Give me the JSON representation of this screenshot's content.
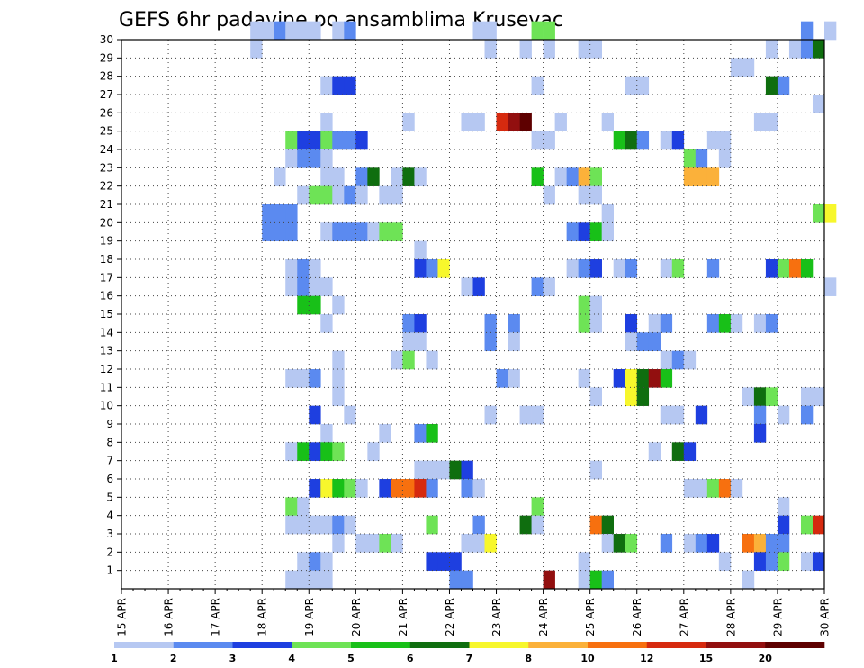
{
  "chart_data": {
    "type": "heatmap",
    "title": "GEFS 6hr padavine po ansamblima Krusevac",
    "xlabel": "",
    "ylabel": "",
    "x_tick_labels": [
      "15 APR",
      "16 APR",
      "17 APR",
      "18 APR",
      "19 APR",
      "20 APR",
      "21 APR",
      "22 APR",
      "23 APR",
      "24 APR",
      "25 APR",
      "26 APR",
      "27 APR",
      "28 APR",
      "29 APR",
      "30 APR"
    ],
    "y_tick_labels": [
      "1",
      "2",
      "3",
      "4",
      "5",
      "6",
      "7",
      "8",
      "9",
      "10",
      "11",
      "12",
      "13",
      "14",
      "15",
      "16",
      "17",
      "18",
      "19",
      "20",
      "21",
      "22",
      "23",
      "24",
      "25",
      "26",
      "27",
      "28",
      "29",
      "30"
    ],
    "legend": {
      "colors": [
        "#b6c8f2",
        "#5b8af0",
        "#1e3fe0",
        "#6ee356",
        "#18c018",
        "#0f6e0f",
        "#f7f72c",
        "#fbb13a",
        "#f7700f",
        "#d62a0f",
        "#920f0f",
        "#5e0000"
      ],
      "labels": [
        "1",
        "2",
        "3",
        "4",
        "5",
        "6",
        "7",
        "8",
        "10",
        "12",
        "15",
        "20"
      ]
    },
    "time_steps_6h_from_15APR00": "x index 0..60, 4 steps per day",
    "cells": [
      [
        11,
        30,
        0
      ],
      [
        12,
        30,
        0
      ],
      [
        13,
        30,
        1
      ],
      [
        14,
        30,
        0
      ],
      [
        15,
        30,
        0
      ],
      [
        16,
        30,
        0
      ],
      [
        18,
        30,
        0
      ],
      [
        19,
        30,
        1
      ],
      [
        30,
        30,
        0
      ],
      [
        31,
        30,
        0
      ],
      [
        35,
        30,
        3
      ],
      [
        36,
        30,
        3
      ],
      [
        58,
        30,
        1
      ],
      [
        60,
        30,
        0
      ],
      [
        11,
        29,
        0
      ],
      [
        31,
        29,
        0
      ],
      [
        34,
        29,
        0
      ],
      [
        36,
        29,
        0
      ],
      [
        39,
        29,
        0
      ],
      [
        40,
        29,
        0
      ],
      [
        55,
        29,
        0
      ],
      [
        57,
        29,
        0
      ],
      [
        58,
        29,
        1
      ],
      [
        59,
        29,
        5
      ],
      [
        52,
        28,
        0
      ],
      [
        53,
        28,
        0
      ],
      [
        17,
        27,
        0
      ],
      [
        18,
        27,
        2
      ],
      [
        19,
        27,
        2
      ],
      [
        35,
        27,
        0
      ],
      [
        43,
        27,
        0
      ],
      [
        44,
        27,
        0
      ],
      [
        55,
        27,
        5
      ],
      [
        56,
        27,
        1
      ],
      [
        59,
        26,
        0
      ],
      [
        17,
        25,
        0
      ],
      [
        24,
        25,
        0
      ],
      [
        29,
        25,
        0
      ],
      [
        30,
        25,
        0
      ],
      [
        32,
        25,
        9
      ],
      [
        33,
        25,
        10
      ],
      [
        34,
        25,
        11
      ],
      [
        37,
        25,
        0
      ],
      [
        41,
        25,
        0
      ],
      [
        54,
        25,
        0
      ],
      [
        55,
        25,
        0
      ],
      [
        14,
        24,
        3
      ],
      [
        15,
        24,
        2
      ],
      [
        16,
        24,
        2
      ],
      [
        17,
        24,
        3
      ],
      [
        18,
        24,
        1
      ],
      [
        19,
        24,
        1
      ],
      [
        20,
        24,
        2
      ],
      [
        35,
        24,
        0
      ],
      [
        36,
        24,
        0
      ],
      [
        42,
        24,
        4
      ],
      [
        43,
        24,
        5
      ],
      [
        44,
        24,
        1
      ],
      [
        46,
        24,
        0
      ],
      [
        47,
        24,
        2
      ],
      [
        50,
        24,
        0
      ],
      [
        51,
        24,
        0
      ],
      [
        14,
        23,
        0
      ],
      [
        15,
        23,
        1
      ],
      [
        16,
        23,
        1
      ],
      [
        17,
        23,
        0
      ],
      [
        48,
        23,
        3
      ],
      [
        49,
        23,
        1
      ],
      [
        51,
        23,
        0
      ],
      [
        13,
        22,
        0
      ],
      [
        17,
        22,
        0
      ],
      [
        18,
        22,
        0
      ],
      [
        20,
        22,
        1
      ],
      [
        21,
        22,
        5
      ],
      [
        23,
        22,
        0
      ],
      [
        24,
        22,
        5
      ],
      [
        25,
        22,
        0
      ],
      [
        35,
        22,
        4
      ],
      [
        37,
        22,
        0
      ],
      [
        38,
        22,
        1
      ],
      [
        39,
        22,
        7
      ],
      [
        40,
        22,
        3
      ],
      [
        48,
        22,
        7
      ],
      [
        49,
        22,
        7
      ],
      [
        50,
        22,
        7
      ],
      [
        15,
        21,
        0
      ],
      [
        16,
        21,
        3
      ],
      [
        17,
        21,
        3
      ],
      [
        18,
        21,
        0
      ],
      [
        19,
        21,
        1
      ],
      [
        20,
        21,
        0
      ],
      [
        22,
        21,
        0
      ],
      [
        23,
        21,
        0
      ],
      [
        36,
        21,
        0
      ],
      [
        39,
        21,
        0
      ],
      [
        40,
        21,
        0
      ],
      [
        12,
        20,
        1
      ],
      [
        13,
        20,
        1
      ],
      [
        14,
        20,
        1
      ],
      [
        41,
        20,
        0
      ],
      [
        59,
        20,
        3
      ],
      [
        60,
        20,
        6
      ],
      [
        12,
        19,
        1
      ],
      [
        13,
        19,
        1
      ],
      [
        14,
        19,
        1
      ],
      [
        17,
        19,
        0
      ],
      [
        18,
        19,
        1
      ],
      [
        19,
        19,
        1
      ],
      [
        20,
        19,
        1
      ],
      [
        21,
        19,
        0
      ],
      [
        22,
        19,
        3
      ],
      [
        23,
        19,
        3
      ],
      [
        38,
        19,
        1
      ],
      [
        39,
        19,
        2
      ],
      [
        40,
        19,
        4
      ],
      [
        41,
        19,
        0
      ],
      [
        25,
        18,
        0
      ],
      [
        14,
        17,
        0
      ],
      [
        15,
        17,
        1
      ],
      [
        16,
        17,
        0
      ],
      [
        25,
        17,
        2
      ],
      [
        26,
        17,
        1
      ],
      [
        27,
        17,
        6
      ],
      [
        38,
        17,
        0
      ],
      [
        39,
        17,
        1
      ],
      [
        40,
        17,
        2
      ],
      [
        42,
        17,
        0
      ],
      [
        43,
        17,
        1
      ],
      [
        46,
        17,
        0
      ],
      [
        47,
        17,
        3
      ],
      [
        50,
        17,
        1
      ],
      [
        55,
        17,
        2
      ],
      [
        56,
        17,
        3
      ],
      [
        57,
        17,
        8
      ],
      [
        58,
        17,
        4
      ],
      [
        14,
        16,
        0
      ],
      [
        15,
        16,
        1
      ],
      [
        16,
        16,
        0
      ],
      [
        17,
        16,
        0
      ],
      [
        29,
        16,
        0
      ],
      [
        30,
        16,
        2
      ],
      [
        35,
        16,
        1
      ],
      [
        36,
        16,
        0
      ],
      [
        60,
        16,
        0
      ],
      [
        15,
        15,
        4
      ],
      [
        16,
        15,
        4
      ],
      [
        18,
        15,
        0
      ],
      [
        39,
        15,
        3
      ],
      [
        40,
        15,
        0
      ],
      [
        17,
        14,
        0
      ],
      [
        24,
        14,
        1
      ],
      [
        25,
        14,
        2
      ],
      [
        31,
        14,
        1
      ],
      [
        33,
        14,
        1
      ],
      [
        39,
        14,
        3
      ],
      [
        40,
        14,
        0
      ],
      [
        43,
        14,
        2
      ],
      [
        45,
        14,
        0
      ],
      [
        46,
        14,
        1
      ],
      [
        50,
        14,
        1
      ],
      [
        51,
        14,
        4
      ],
      [
        52,
        14,
        0
      ],
      [
        54,
        14,
        0
      ],
      [
        55,
        14,
        1
      ],
      [
        24,
        13,
        0
      ],
      [
        25,
        13,
        0
      ],
      [
        31,
        13,
        1
      ],
      [
        33,
        13,
        0
      ],
      [
        43,
        13,
        0
      ],
      [
        44,
        13,
        1
      ],
      [
        45,
        13,
        1
      ],
      [
        18,
        12,
        0
      ],
      [
        23,
        12,
        0
      ],
      [
        24,
        12,
        3
      ],
      [
        26,
        12,
        0
      ],
      [
        46,
        12,
        0
      ],
      [
        47,
        12,
        1
      ],
      [
        48,
        12,
        0
      ],
      [
        14,
        11,
        0
      ],
      [
        15,
        11,
        0
      ],
      [
        16,
        11,
        1
      ],
      [
        18,
        11,
        0
      ],
      [
        32,
        11,
        1
      ],
      [
        33,
        11,
        0
      ],
      [
        39,
        11,
        0
      ],
      [
        42,
        11,
        2
      ],
      [
        43,
        11,
        6
      ],
      [
        44,
        11,
        5
      ],
      [
        45,
        11,
        10
      ],
      [
        46,
        11,
        4
      ],
      [
        18,
        10,
        0
      ],
      [
        40,
        10,
        0
      ],
      [
        43,
        10,
        6
      ],
      [
        44,
        10,
        5
      ],
      [
        53,
        10,
        0
      ],
      [
        54,
        10,
        5
      ],
      [
        55,
        10,
        3
      ],
      [
        58,
        10,
        0
      ],
      [
        59,
        10,
        0
      ],
      [
        16,
        9,
        2
      ],
      [
        19,
        9,
        0
      ],
      [
        31,
        9,
        0
      ],
      [
        34,
        9,
        0
      ],
      [
        35,
        9,
        0
      ],
      [
        46,
        9,
        0
      ],
      [
        47,
        9,
        0
      ],
      [
        49,
        9,
        2
      ],
      [
        54,
        9,
        1
      ],
      [
        56,
        9,
        0
      ],
      [
        58,
        9,
        1
      ],
      [
        17,
        8,
        0
      ],
      [
        22,
        8,
        0
      ],
      [
        25,
        8,
        1
      ],
      [
        26,
        8,
        4
      ],
      [
        54,
        8,
        2
      ],
      [
        14,
        7,
        0
      ],
      [
        15,
        7,
        4
      ],
      [
        16,
        7,
        2
      ],
      [
        17,
        7,
        4
      ],
      [
        18,
        7,
        3
      ],
      [
        21,
        7,
        0
      ],
      [
        45,
        7,
        0
      ],
      [
        47,
        7,
        5
      ],
      [
        48,
        7,
        2
      ],
      [
        25,
        6,
        0
      ],
      [
        26,
        6,
        0
      ],
      [
        27,
        6,
        0
      ],
      [
        28,
        6,
        5
      ],
      [
        29,
        6,
        2
      ],
      [
        40,
        6,
        0
      ],
      [
        16,
        5,
        2
      ],
      [
        17,
        5,
        6
      ],
      [
        18,
        5,
        4
      ],
      [
        19,
        5,
        3
      ],
      [
        20,
        5,
        0
      ],
      [
        22,
        5,
        2
      ],
      [
        23,
        5,
        8
      ],
      [
        24,
        5,
        8
      ],
      [
        25,
        5,
        9
      ],
      [
        26,
        5,
        1
      ],
      [
        29,
        5,
        1
      ],
      [
        30,
        5,
        0
      ],
      [
        48,
        5,
        0
      ],
      [
        49,
        5,
        0
      ],
      [
        50,
        5,
        3
      ],
      [
        51,
        5,
        8
      ],
      [
        52,
        5,
        0
      ],
      [
        14,
        4,
        3
      ],
      [
        15,
        4,
        0
      ],
      [
        35,
        4,
        3
      ],
      [
        56,
        4,
        0
      ],
      [
        14,
        3,
        0
      ],
      [
        15,
        3,
        0
      ],
      [
        16,
        3,
        0
      ],
      [
        17,
        3,
        0
      ],
      [
        18,
        3,
        1
      ],
      [
        19,
        3,
        0
      ],
      [
        26,
        3,
        3
      ],
      [
        30,
        3,
        1
      ],
      [
        34,
        3,
        5
      ],
      [
        35,
        3,
        0
      ],
      [
        40,
        3,
        8
      ],
      [
        41,
        3,
        5
      ],
      [
        56,
        3,
        2
      ],
      [
        58,
        3,
        3
      ],
      [
        59,
        3,
        9
      ],
      [
        18,
        2,
        0
      ],
      [
        20,
        2,
        0
      ],
      [
        21,
        2,
        0
      ],
      [
        22,
        2,
        3
      ],
      [
        23,
        2,
        0
      ],
      [
        29,
        2,
        0
      ],
      [
        30,
        2,
        0
      ],
      [
        31,
        2,
        6
      ],
      [
        41,
        2,
        0
      ],
      [
        42,
        2,
        5
      ],
      [
        43,
        2,
        3
      ],
      [
        46,
        2,
        1
      ],
      [
        48,
        2,
        0
      ],
      [
        49,
        2,
        1
      ],
      [
        50,
        2,
        2
      ],
      [
        53,
        2,
        8
      ],
      [
        54,
        2,
        7
      ],
      [
        55,
        2,
        1
      ],
      [
        56,
        2,
        1
      ],
      [
        15,
        1,
        0
      ],
      [
        16,
        1,
        1
      ],
      [
        17,
        1,
        0
      ],
      [
        26,
        1,
        2
      ],
      [
        27,
        1,
        2
      ],
      [
        28,
        1,
        2
      ],
      [
        39,
        1,
        0
      ],
      [
        51,
        1,
        0
      ],
      [
        54,
        1,
        2
      ],
      [
        55,
        1,
        1
      ],
      [
        56,
        1,
        3
      ],
      [
        58,
        1,
        0
      ],
      [
        59,
        1,
        2
      ],
      [
        14,
        0,
        0
      ],
      [
        15,
        0,
        0
      ],
      [
        16,
        0,
        0
      ],
      [
        17,
        0,
        0
      ],
      [
        28,
        0,
        1
      ],
      [
        29,
        0,
        1
      ],
      [
        36,
        0,
        10
      ],
      [
        39,
        0,
        0
      ],
      [
        40,
        0,
        4
      ],
      [
        41,
        0,
        1
      ],
      [
        53,
        0,
        0
      ]
    ]
  }
}
